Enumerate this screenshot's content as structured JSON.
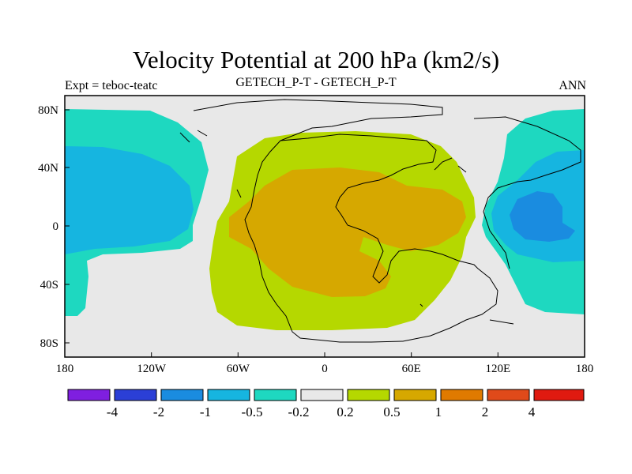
{
  "title": "Velocity Potential at 200 hPa (km2/s)",
  "subtitle_left": "Expt = teboc-teatc",
  "subtitle_center": "GETECH_P-T - GETECH_P-T",
  "subtitle_right": "ANN",
  "colors": {
    "neutral": "#e8e8e8",
    "levels": [
      "#7f1fe0",
      "#2b3fd6",
      "#1a8ce0",
      "#16b5e0",
      "#1ed8c0",
      "#e8e8e8",
      "#b5d800",
      "#d6a800",
      "#e07a00",
      "#e04a1a",
      "#e01a10"
    ]
  },
  "chart_data": {
    "type": "filled-contour-map",
    "variable": "Velocity Potential at 200 hPa",
    "units": "km2/s",
    "x_axis": {
      "ticks": [
        "180",
        "120W",
        "60W",
        "0",
        "60E",
        "120E",
        "180"
      ],
      "range": [
        -180,
        180
      ]
    },
    "y_axis": {
      "ticks": [
        "80N",
        "40N",
        "0",
        "40S",
        "80S"
      ],
      "range": [
        -90,
        90
      ]
    },
    "colorbar": {
      "levels": [
        "-4",
        "-2",
        "-1",
        "-0.5",
        "-0.2",
        "0.2",
        "0.5",
        "1",
        "2",
        "4"
      ]
    }
  }
}
